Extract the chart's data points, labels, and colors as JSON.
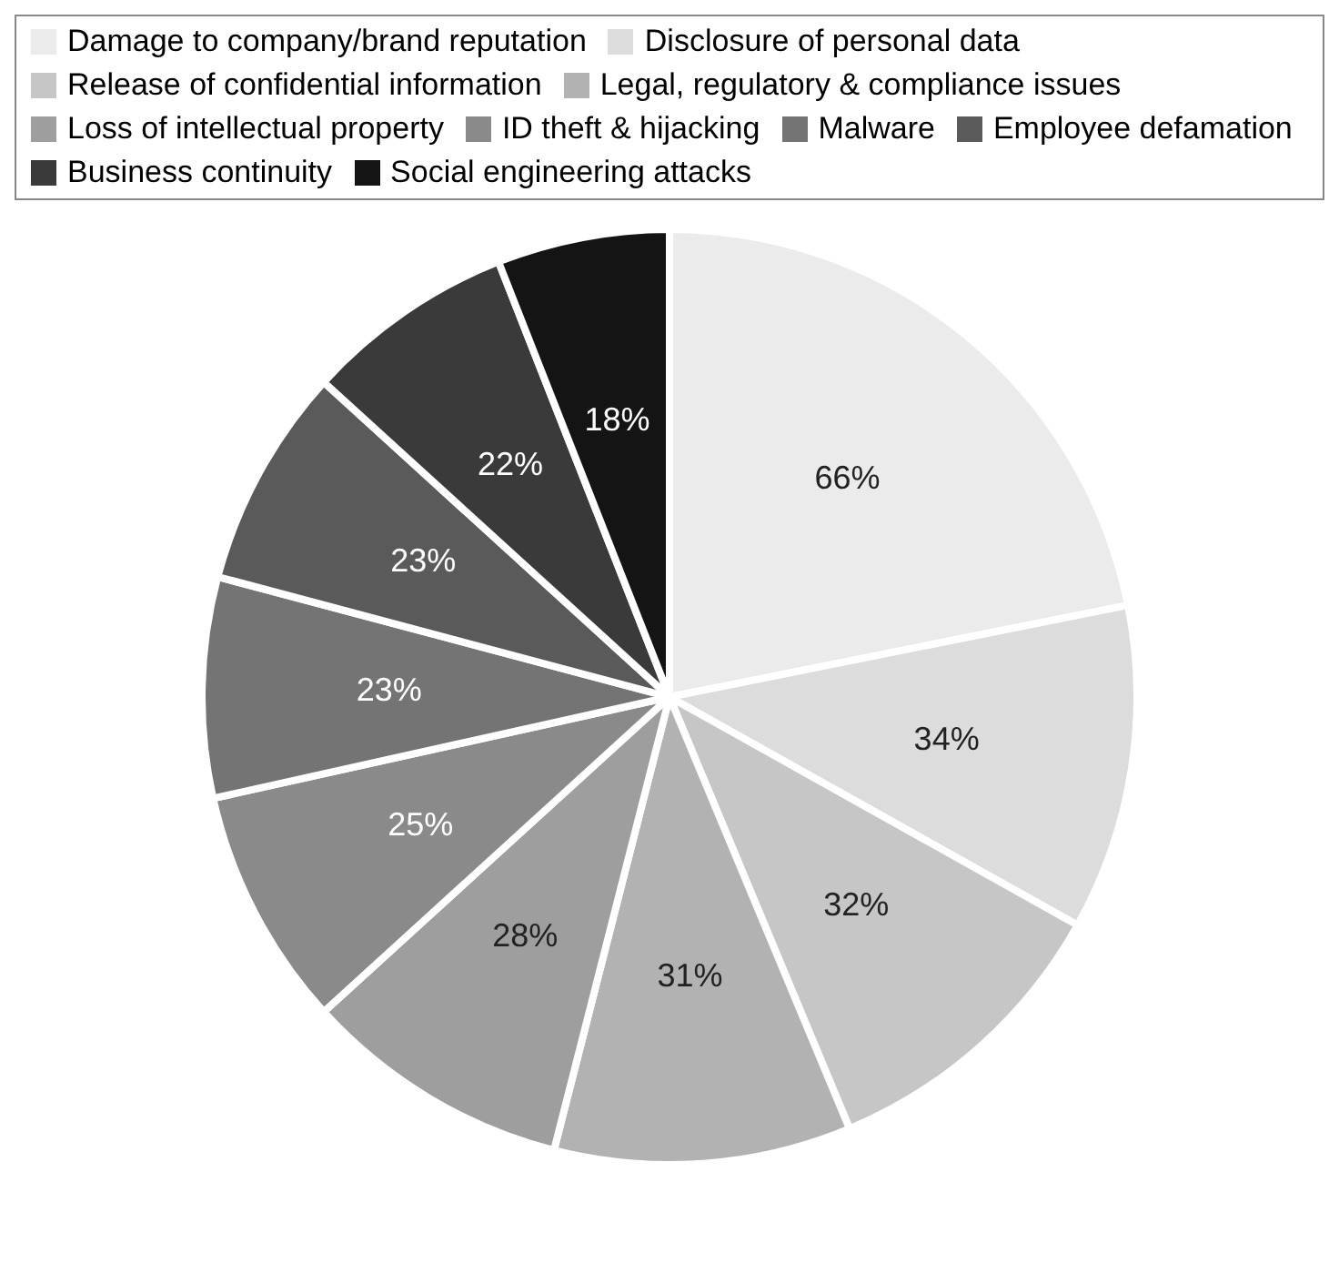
{
  "chart_data": {
    "type": "pie",
    "categories": [
      "Damage to company/brand reputation",
      "Disclosure of personal data",
      "Release of confidential information",
      "Legal, regulatory & compliance issues",
      "Loss of intellectual property",
      "ID theft & hijacking",
      "Malware",
      "Employee defamation",
      "Business continuity",
      "Social engineering attacks"
    ],
    "values": [
      66,
      34,
      32,
      31,
      28,
      25,
      23,
      23,
      22,
      18
    ],
    "colors": [
      "#ebebeb",
      "#dcdcdc",
      "#c6c6c6",
      "#b2b2b2",
      "#9e9e9e",
      "#8a8a8a",
      "#747474",
      "#5a5a5a",
      "#3a3a3a",
      "#141414"
    ],
    "value_labels": [
      "66%",
      "34%",
      "32%",
      "31%",
      "28%",
      "25%",
      "23%",
      "23%",
      "22%",
      "18%"
    ],
    "legend": "top"
  }
}
